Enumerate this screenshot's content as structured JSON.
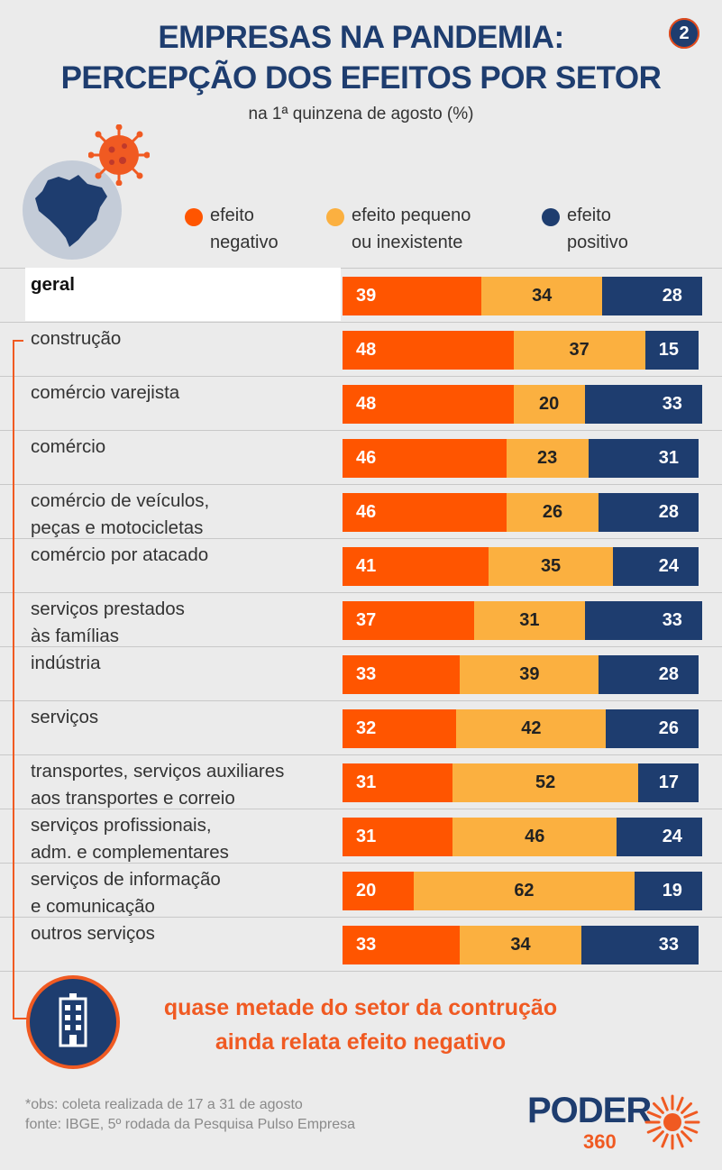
{
  "title_line1": "EMPRESAS NA PANDEMIA:",
  "title_line2": "PERCEPÇÃO DOS EFEITOS POR SETOR",
  "subtitle": "na 1ª quinzena de agosto (%)",
  "page_number": "2",
  "colors": {
    "negative": "#ff5500",
    "small": "#fbb040",
    "positive": "#1e3d6f",
    "accent": "#f05a22"
  },
  "legend": [
    {
      "line1": "efeito",
      "line2": "negativo",
      "color": "#ff5500"
    },
    {
      "line1": "efeito pequeno",
      "line2": "ou inexistente",
      "color": "#fbb040"
    },
    {
      "line1": "efeito",
      "line2": "positivo",
      "color": "#1e3d6f"
    }
  ],
  "chart_data": {
    "type": "bar",
    "orientation": "horizontal",
    "stacked": true,
    "categories": [
      [
        "geral"
      ],
      [
        "construção"
      ],
      [
        "comércio varejista"
      ],
      [
        "comércio"
      ],
      [
        "comércio de veículos,",
        "peças e motocicletas"
      ],
      [
        "comércio por atacado"
      ],
      [
        "serviços prestados",
        "às famílias"
      ],
      [
        "indústria"
      ],
      [
        "serviços"
      ],
      [
        "transportes, serviços auxiliares",
        "aos transportes e correio"
      ],
      [
        "serviços profissionais,",
        "adm. e complementares"
      ],
      [
        "serviços de informação",
        "e comunicação"
      ],
      [
        "outros serviços"
      ]
    ],
    "series": [
      {
        "name": "efeito negativo",
        "values": [
          39,
          48,
          48,
          46,
          46,
          41,
          37,
          33,
          32,
          31,
          31,
          20,
          33
        ]
      },
      {
        "name": "efeito pequeno ou inexistente",
        "values": [
          34,
          37,
          20,
          23,
          26,
          35,
          31,
          39,
          42,
          52,
          46,
          62,
          34
        ]
      },
      {
        "name": "efeito positivo",
        "values": [
          28,
          15,
          33,
          31,
          28,
          24,
          33,
          28,
          26,
          17,
          24,
          19,
          33
        ]
      }
    ],
    "xlim": [
      0,
      100
    ]
  },
  "callout_line1": "quase metade do setor da contrução",
  "callout_line2": "ainda relata efeito negativo",
  "note_line1": "*obs: coleta realizada de 17 a 31 de agosto",
  "note_line2": "fonte: IBGE, 5º rodada da Pesquisa Pulso Empresa",
  "logo_main": "PODER",
  "logo_sub": "360"
}
